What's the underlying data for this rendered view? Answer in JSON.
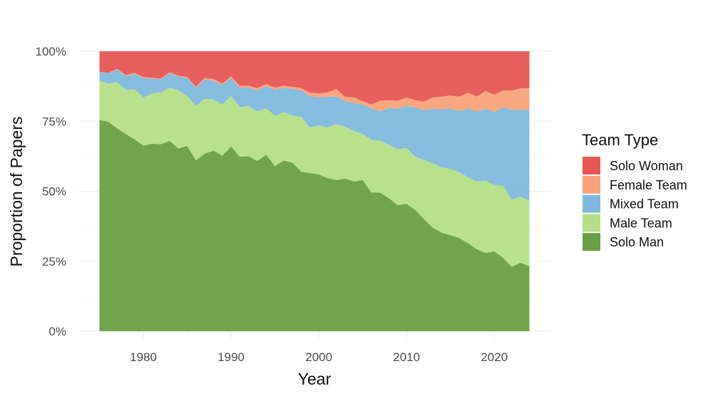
{
  "chart_data": {
    "type": "area",
    "stacked": "percent",
    "xlabel": "Year",
    "ylabel": "Proportion of Papers",
    "xlim": [
      1975,
      2024
    ],
    "ylim": [
      0,
      1
    ],
    "x_ticks": [
      1980,
      1990,
      2000,
      2010,
      2020
    ],
    "y_ticks": [
      0,
      0.25,
      0.5,
      0.75,
      1.0
    ],
    "y_tick_labels": [
      "0%",
      "25%",
      "50%",
      "75%",
      "100%"
    ],
    "grid": true,
    "legend": {
      "title": "Team Type",
      "position": "right"
    },
    "x": [
      1975,
      1976,
      1977,
      1978,
      1979,
      1980,
      1981,
      1982,
      1983,
      1984,
      1985,
      1986,
      1987,
      1988,
      1989,
      1990,
      1991,
      1992,
      1993,
      1994,
      1995,
      1996,
      1997,
      1998,
      1999,
      2000,
      2001,
      2002,
      2003,
      2004,
      2005,
      2006,
      2007,
      2008,
      2009,
      2010,
      2011,
      2012,
      2013,
      2014,
      2015,
      2016,
      2017,
      2018,
      2019,
      2020,
      2021,
      2022,
      2023,
      2024
    ],
    "series": [
      {
        "name": "Solo Man",
        "color": "#6a9f45",
        "cumulative_top": [
          0.755,
          0.748,
          0.725,
          0.705,
          0.685,
          0.663,
          0.67,
          0.668,
          0.68,
          0.653,
          0.662,
          0.61,
          0.635,
          0.645,
          0.627,
          0.66,
          0.623,
          0.625,
          0.608,
          0.63,
          0.59,
          0.61,
          0.602,
          0.57,
          0.565,
          0.56,
          0.547,
          0.54,
          0.545,
          0.535,
          0.54,
          0.495,
          0.495,
          0.475,
          0.45,
          0.455,
          0.433,
          0.4,
          0.37,
          0.352,
          0.343,
          0.333,
          0.315,
          0.293,
          0.28,
          0.285,
          0.262,
          0.23,
          0.245,
          0.232
        ]
      },
      {
        "name": "Male Team",
        "color": "#b5df87",
        "cumulative_top": [
          0.895,
          0.885,
          0.89,
          0.862,
          0.865,
          0.835,
          0.85,
          0.853,
          0.87,
          0.86,
          0.84,
          0.805,
          0.83,
          0.828,
          0.81,
          0.84,
          0.8,
          0.805,
          0.785,
          0.795,
          0.77,
          0.782,
          0.77,
          0.765,
          0.728,
          0.735,
          0.728,
          0.74,
          0.73,
          0.715,
          0.705,
          0.683,
          0.68,
          0.665,
          0.65,
          0.655,
          0.622,
          0.612,
          0.6,
          0.585,
          0.58,
          0.568,
          0.55,
          0.535,
          0.537,
          0.523,
          0.52,
          0.47,
          0.48,
          0.465
        ]
      },
      {
        "name": "Mixed Team",
        "color": "#7fb8dc",
        "cumulative_top": [
          0.926,
          0.922,
          0.935,
          0.912,
          0.92,
          0.905,
          0.902,
          0.9,
          0.922,
          0.91,
          0.905,
          0.87,
          0.9,
          0.895,
          0.88,
          0.905,
          0.87,
          0.87,
          0.86,
          0.875,
          0.862,
          0.87,
          0.865,
          0.86,
          0.84,
          0.835,
          0.838,
          0.838,
          0.822,
          0.815,
          0.81,
          0.796,
          0.785,
          0.798,
          0.795,
          0.805,
          0.8,
          0.79,
          0.795,
          0.793,
          0.796,
          0.786,
          0.796,
          0.783,
          0.795,
          0.782,
          0.8,
          0.79,
          0.792,
          0.79
        ]
      },
      {
        "name": "Female Team",
        "color": "#f9a27a",
        "cumulative_top": [
          0.927,
          0.923,
          0.937,
          0.915,
          0.923,
          0.908,
          0.905,
          0.903,
          0.925,
          0.913,
          0.908,
          0.873,
          0.905,
          0.9,
          0.885,
          0.91,
          0.876,
          0.877,
          0.868,
          0.883,
          0.87,
          0.877,
          0.873,
          0.868,
          0.852,
          0.85,
          0.853,
          0.865,
          0.837,
          0.835,
          0.822,
          0.81,
          0.823,
          0.825,
          0.823,
          0.835,
          0.825,
          0.82,
          0.835,
          0.838,
          0.842,
          0.838,
          0.852,
          0.838,
          0.858,
          0.845,
          0.86,
          0.86,
          0.868,
          0.868
        ]
      },
      {
        "name": "Solo Woman",
        "color": "#e65754",
        "cumulative_top": [
          1,
          1,
          1,
          1,
          1,
          1,
          1,
          1,
          1,
          1,
          1,
          1,
          1,
          1,
          1,
          1,
          1,
          1,
          1,
          1,
          1,
          1,
          1,
          1,
          1,
          1,
          1,
          1,
          1,
          1,
          1,
          1,
          1,
          1,
          1,
          1,
          1,
          1,
          1,
          1,
          1,
          1,
          1,
          1,
          1,
          1,
          1,
          1,
          1,
          1
        ]
      }
    ],
    "legend_order": [
      "Solo Woman",
      "Female Team",
      "Mixed Team",
      "Male Team",
      "Solo Man"
    ]
  }
}
